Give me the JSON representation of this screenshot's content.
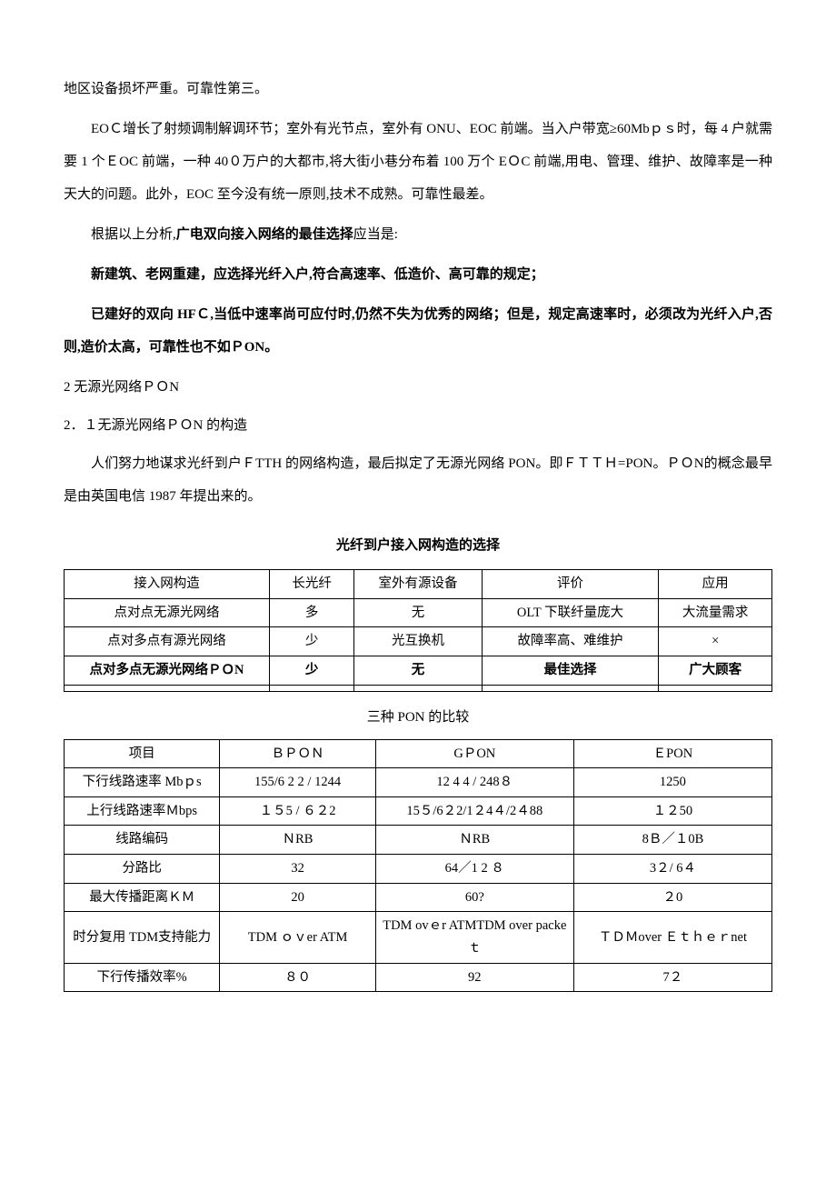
{
  "paragraphs": {
    "p1": "地区设备损坏严重。可靠性第三。",
    "p2": "EOＣ增长了射频调制解调环节；室外有光节点，室外有 ONU、EOC 前端。当入户带宽≥60Mbｐｓ时，每 4 户就需要 1 个ＥOC 前端，一种 40０万户的大都市,将大街小巷分布着 100 万个 EＯC 前端,用电、管理、维护、故障率是一种天大的问题。此外，EOC 至今没有统一原则,技术不成熟。可靠性最差。",
    "p3_a": "根据以上分析,",
    "p3_b": "广电双向接入网络的最佳选择",
    "p3_c": "应当是:",
    "p4": "新建筑、老网重建，应选择光纤入户,符合高速率、低造价、高可靠的规定；",
    "p5": "已建好的双向 HFＣ,当低中速率尚可应付时,仍然不失为优秀的网络；但是，规定高速率时，必须改为光纤入户,否则,造价太高，可靠性也不如ＰON。",
    "s2": "2 无源光网络ＰＯN",
    "s21": "2．１无源光网络ＰＯN 的构造",
    "p6": "人们努力地谋求光纤到户ＦTTH 的网络构造，最后拟定了无源光网络 PON。即ＦＴＴＨ=PON。ＰＯN的概念最早是由英国电信 1987 年提出来的。"
  },
  "table1": {
    "title": "光纤到户接入网构造的选择",
    "headers": [
      "接入网构造",
      "长光纤",
      "室外有源设备",
      "评价",
      "应用"
    ],
    "rows": [
      [
        "点对点无源光网络",
        "多",
        "无",
        "OLT 下联纤量庞大",
        "大流量需求"
      ],
      [
        "点对多点有源光网络",
        "少",
        "光互换机",
        "故障率高、难维护",
        "×"
      ],
      [
        "点对多点无源光网络ＰＯN",
        "少",
        "无",
        "最佳选择",
        "广大顾客"
      ],
      [
        "",
        "",
        "",
        "",
        ""
      ]
    ]
  },
  "table2": {
    "title": "三种 PON 的比较",
    "headers": [
      "项目",
      "ＢＰＯＮ",
      "GＰON",
      "ＥPON"
    ],
    "rows": [
      [
        "下行线路速率 Mbｐs",
        "155/6 2 2 / 1244",
        "12 4 4 / 248８",
        "1250"
      ],
      [
        "上行线路速率Ｍbps",
        "１５5 /  ６２2",
        "15５/6２2/1２4４/2４88",
        "１２50"
      ],
      [
        "线路编码",
        "ＮRB",
        "ＮRB",
        "8Ｂ／１0B"
      ],
      [
        "分路比",
        "32",
        "64／1 2 ８",
        "3２/ 6４"
      ],
      [
        "最大传播距离ＫＭ",
        "20",
        "60?",
        "２0"
      ],
      [
        "时分复用 TDM支持能力",
        "TDM  ｏｖer ATM",
        "TDM ovｅr ATMTDM over packeｔ",
        "ＴＤＭover   Ｅｔｈｅｒnet"
      ],
      [
        "下行传播效率%",
        "８０",
        "92",
        "7２"
      ]
    ]
  }
}
